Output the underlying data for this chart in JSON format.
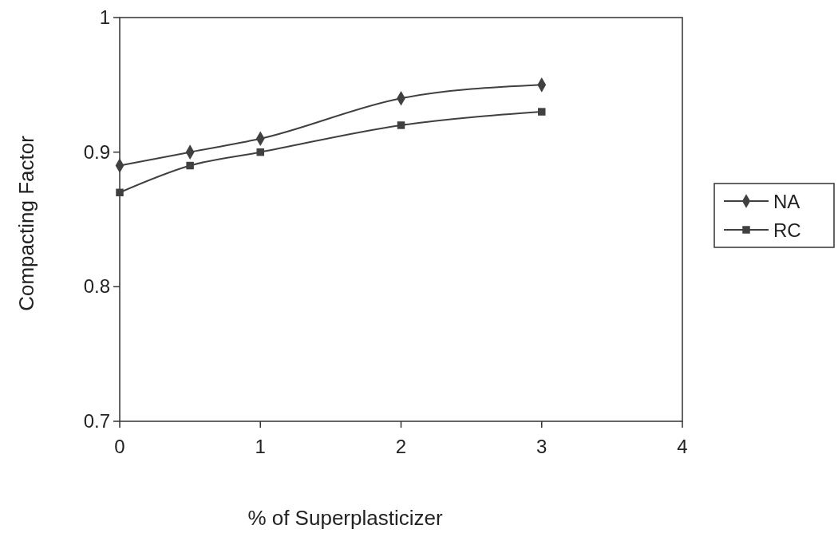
{
  "chart_data": {
    "type": "line",
    "xlabel": "% of Superplasticizer",
    "ylabel": "Compacting Factor",
    "xlim": [
      0,
      4
    ],
    "xticks": [
      0,
      1,
      2,
      3,
      4
    ],
    "ylim": [
      0.7,
      1
    ],
    "yticks": [
      0.7,
      0.8,
      0.9,
      1
    ],
    "grid": false,
    "legend": "right",
    "line_style": "solid",
    "series": [
      {
        "name": "NA",
        "color": "#404040",
        "marker": "diamond",
        "x": [
          0,
          0.5,
          1,
          2,
          3
        ],
        "values": [
          0.89,
          0.9,
          0.91,
          0.94,
          0.95
        ]
      },
      {
        "name": "RC",
        "color": "#404040",
        "marker": "square",
        "x": [
          0,
          0.5,
          1,
          2,
          3
        ],
        "values": [
          0.87,
          0.89,
          0.9,
          0.92,
          0.93
        ]
      }
    ]
  }
}
